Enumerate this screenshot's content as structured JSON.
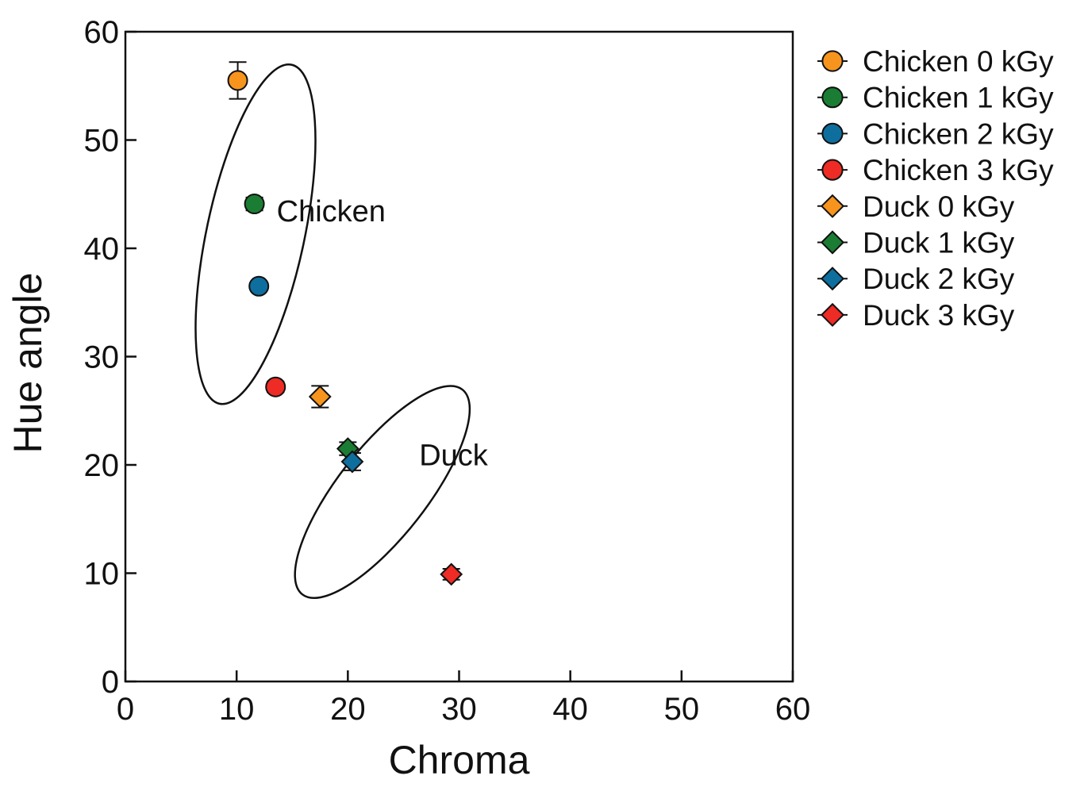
{
  "chart_data": {
    "type": "scatter",
    "title": "",
    "xlabel": "Chroma",
    "ylabel": "Hue angle",
    "xlim": [
      0,
      60
    ],
    "ylim": [
      0,
      60
    ],
    "xticks": [
      "0",
      "10",
      "20",
      "30",
      "40",
      "50",
      "60"
    ],
    "yticks": [
      "0",
      "10",
      "20",
      "30",
      "40",
      "50",
      "60"
    ],
    "grid": false,
    "legend": "right",
    "series": [
      {
        "name": "Chicken 0 kGy",
        "marker": "circle",
        "color": "#F7941D",
        "x": 10.1,
        "y": 55.5,
        "yerr": 1.7
      },
      {
        "name": "Chicken 1 kGy",
        "marker": "circle",
        "color": "#1B7D33",
        "x": 11.6,
        "y": 44.1,
        "yerr": 0.6
      },
      {
        "name": "Chicken 2 kGy",
        "marker": "circle",
        "color": "#0E6E9E",
        "x": 12.0,
        "y": 36.5,
        "yerr": 0.4
      },
      {
        "name": "Chicken 3 kGy",
        "marker": "circle",
        "color": "#EE2B24",
        "x": 13.5,
        "y": 27.2,
        "yerr": 0.5
      },
      {
        "name": "Duck 0 kGy",
        "marker": "diamond",
        "color": "#F7941D",
        "x": 17.5,
        "y": 26.3,
        "yerr": 1.0
      },
      {
        "name": "Duck 1 kGy",
        "marker": "diamond",
        "color": "#1B7D33",
        "x": 20.0,
        "y": 21.5,
        "yerr": 0.6
      },
      {
        "name": "Duck 2 kGy",
        "marker": "diamond",
        "color": "#0E6E9E",
        "x": 20.4,
        "y": 20.3,
        "yerr": 0.8
      },
      {
        "name": "Duck 3 kGy",
        "marker": "diamond",
        "color": "#EE2B24",
        "x": 29.3,
        "y": 9.9,
        "yerr": 0.5
      }
    ],
    "annotations": [
      {
        "text": "Chicken",
        "x": 18.5,
        "y": 43.5
      },
      {
        "text": "Duck",
        "x": 29.5,
        "y": 21.0
      }
    ],
    "groups": [
      {
        "name": "Chicken",
        "cx": 11.7,
        "cy": 41.3,
        "rx": 4.4,
        "ry": 16.0,
        "angle": -78
      },
      {
        "name": "Duck",
        "cx": 23.1,
        "cy": 17.5,
        "rx": 4.0,
        "ry": 12.0,
        "angle": -52
      }
    ]
  }
}
